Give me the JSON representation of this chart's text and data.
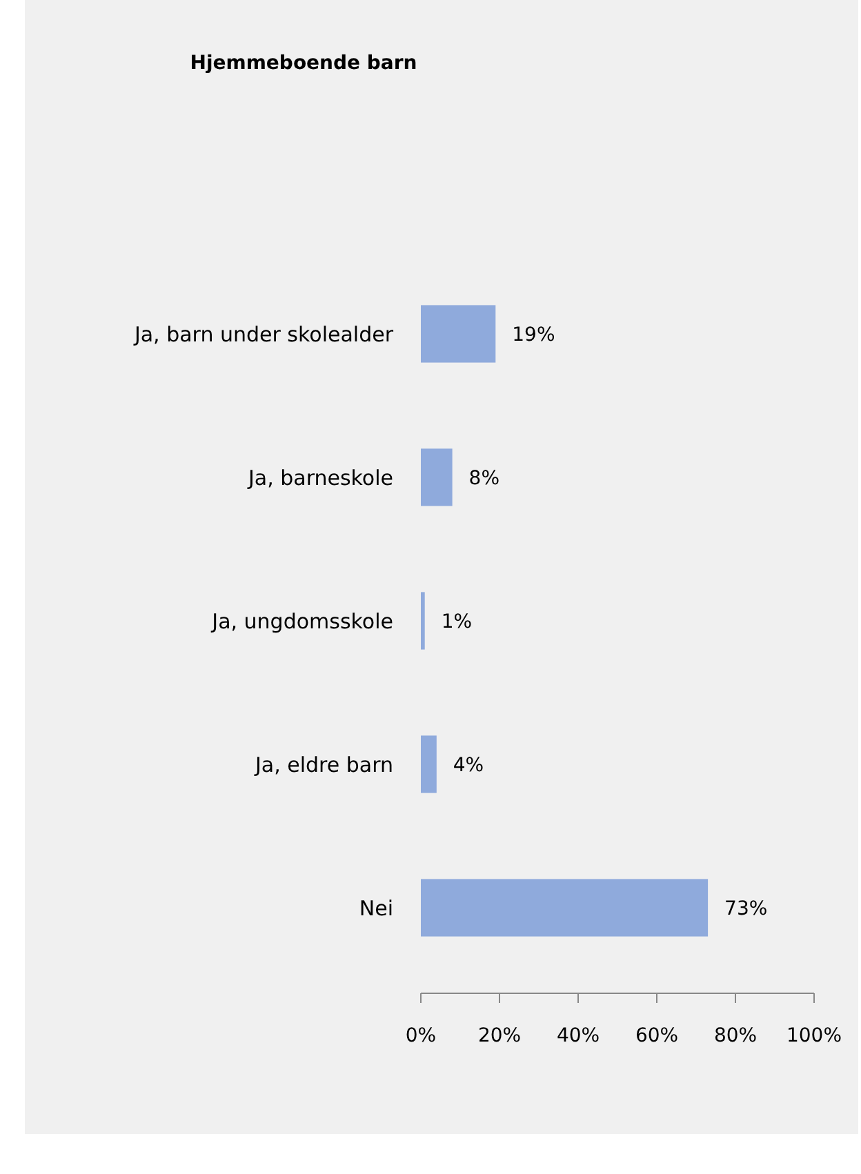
{
  "chart_data": {
    "type": "bar",
    "orientation": "horizontal",
    "title": "Hjemmeboende barn",
    "categories": [
      "Ja, barn under skolealder",
      "Ja, barneskole",
      "Ja, ungdomsskole",
      "Ja, eldre barn",
      "Nei"
    ],
    "values": [
      19,
      8,
      1,
      4,
      73
    ],
    "value_labels": [
      "19%",
      "8%",
      "1%",
      "4%",
      "73%"
    ],
    "color": "#8faadc",
    "xlim": [
      0,
      100
    ],
    "xticks": [
      {
        "value": 0,
        "label": "0%"
      },
      {
        "value": 20,
        "label": "20%"
      },
      {
        "value": 40,
        "label": "40%"
      },
      {
        "value": 60,
        "label": "60%"
      },
      {
        "value": 80,
        "label": "80%"
      },
      {
        "value": 100,
        "label": "100%"
      }
    ],
    "grid": false
  }
}
